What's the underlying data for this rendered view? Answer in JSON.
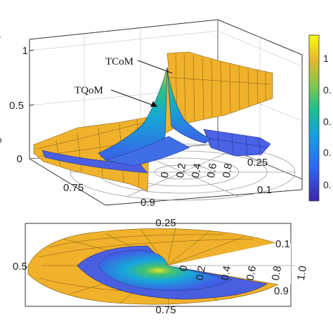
{
  "chart_data": [
    {
      "type": "surface3d-polar",
      "annotations": [
        "TCoM",
        "TQoM"
      ],
      "z_axis": {
        "ticks": [
          "0",
          "0.5",
          "1"
        ],
        "range": [
          0,
          1.1
        ]
      },
      "radial_ticks": [
        "0",
        "0.2",
        "0.4",
        "0.6",
        "0.8"
      ],
      "angular_ticks": [
        "0.25",
        "0.1",
        "0.9",
        "0.75"
      ],
      "colorbar": {
        "ticks": [
          "1",
          "0.",
          "0.",
          "0.",
          "0."
        ],
        "colormap": "parula"
      },
      "series": [
        {
          "name": "TCoM",
          "color": "#f0b12b"
        },
        {
          "name": "TQoM",
          "color": "parula"
        }
      ],
      "grid": true
    },
    {
      "type": "surface-polar-topview",
      "radial_ticks": [
        "0",
        "0.2",
        "0.4",
        "0.6",
        "0.8",
        "1.0"
      ],
      "angular_ticks": [
        "0.25",
        "0.1",
        "0.9",
        "0.75",
        "0.5"
      ],
      "colormap": "parula"
    }
  ],
  "colors": {
    "orange": "#f0b12b",
    "blue": "#4a5fe0",
    "teal": "#2bb8a8",
    "axis": "#333333"
  }
}
